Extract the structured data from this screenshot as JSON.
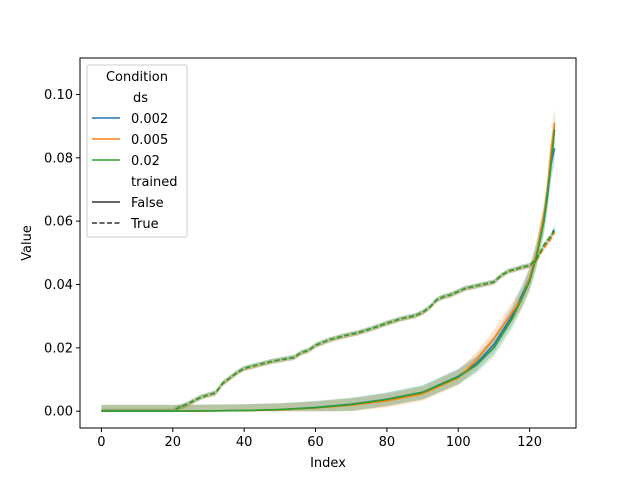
{
  "chart_data": {
    "type": "line",
    "xlabel": "Index",
    "ylabel": "Value",
    "xlim": [
      -6,
      133
    ],
    "ylim": [
      -0.0053,
      0.1115
    ],
    "xticks": [
      0,
      20,
      40,
      60,
      80,
      100,
      120
    ],
    "yticks": [
      0.0,
      0.02,
      0.04,
      0.06,
      0.08,
      0.1
    ],
    "ytick_labels": [
      "0.00",
      "0.02",
      "0.04",
      "0.06",
      "0.08",
      "0.10"
    ],
    "grid": false,
    "legend": {
      "placement": "top-left",
      "title": "Condition",
      "hue_title": "ds",
      "hue_entries": [
        {
          "label": "0.002",
          "color": "#1f77b4"
        },
        {
          "label": "0.005",
          "color": "#ff7f0e"
        },
        {
          "label": "0.02",
          "color": "#2ca02c"
        }
      ],
      "style_title": "trained",
      "style_entries": [
        {
          "label": "False",
          "dash": "solid"
        },
        {
          "label": "True",
          "dash": "dashed"
        }
      ]
    },
    "series": [
      {
        "ds": "0.002",
        "trained": "False",
        "color": "#1f77b4",
        "dash": "solid",
        "x": [
          0,
          20,
          40,
          50,
          60,
          70,
          80,
          90,
          100,
          105,
          110,
          115,
          118,
          120,
          122,
          124,
          125,
          126,
          127
        ],
        "y": [
          0.0,
          0.0,
          0.0002,
          0.0005,
          0.0012,
          0.0022,
          0.0038,
          0.006,
          0.011,
          0.015,
          0.021,
          0.03,
          0.037,
          0.042,
          0.05,
          0.06,
          0.068,
          0.078,
          0.083
        ],
        "band": 0.002
      },
      {
        "ds": "0.005",
        "trained": "False",
        "color": "#ff7f0e",
        "dash": "solid",
        "x": [
          0,
          20,
          40,
          50,
          60,
          70,
          80,
          90,
          100,
          105,
          110,
          115,
          118,
          120,
          122,
          124,
          125,
          126,
          127
        ],
        "y": [
          0.0,
          0.0,
          0.0002,
          0.0004,
          0.001,
          0.0019,
          0.0033,
          0.0055,
          0.0105,
          0.016,
          0.023,
          0.031,
          0.036,
          0.042,
          0.05,
          0.062,
          0.07,
          0.082,
          0.091
        ],
        "band": 0.002
      },
      {
        "ds": "0.02",
        "trained": "False",
        "color": "#2ca02c",
        "dash": "solid",
        "x": [
          0,
          20,
          40,
          50,
          60,
          70,
          80,
          90,
          100,
          105,
          110,
          115,
          118,
          120,
          122,
          124,
          125,
          126,
          127
        ],
        "y": [
          0.0,
          0.0,
          0.0002,
          0.0005,
          0.0011,
          0.0021,
          0.0037,
          0.0059,
          0.0108,
          0.0145,
          0.02,
          0.029,
          0.036,
          0.041,
          0.049,
          0.06,
          0.069,
          0.078,
          0.089
        ],
        "band": 0.002
      },
      {
        "ds": "0.002",
        "trained": "True",
        "color": "#1f77b4",
        "dash": "dashed",
        "x": [
          0,
          20,
          22,
          24,
          28,
          32,
          34,
          36,
          38,
          40,
          44,
          48,
          50,
          54,
          56,
          58,
          60,
          64,
          68,
          72,
          76,
          80,
          84,
          88,
          90,
          92,
          94,
          96,
          98,
          100,
          102,
          106,
          110,
          112,
          114,
          116,
          118,
          120,
          122,
          124,
          126,
          127
        ],
        "y": [
          0.0,
          0.0,
          0.0013,
          0.0022,
          0.0045,
          0.0058,
          0.0088,
          0.0105,
          0.0122,
          0.0135,
          0.0147,
          0.0158,
          0.0162,
          0.017,
          0.0185,
          0.0192,
          0.0208,
          0.0226,
          0.0238,
          0.0248,
          0.0262,
          0.0278,
          0.0292,
          0.0302,
          0.0312,
          0.0328,
          0.0352,
          0.0362,
          0.0368,
          0.0378,
          0.0388,
          0.0398,
          0.0408,
          0.0428,
          0.0442,
          0.0448,
          0.0455,
          0.046,
          0.048,
          0.052,
          0.055,
          0.058
        ],
        "band": 0.0008
      },
      {
        "ds": "0.005",
        "trained": "True",
        "color": "#ff7f0e",
        "dash": "dashed",
        "x": [
          0,
          20,
          22,
          24,
          28,
          32,
          34,
          36,
          38,
          40,
          44,
          48,
          50,
          54,
          56,
          58,
          60,
          64,
          68,
          72,
          76,
          80,
          84,
          88,
          90,
          92,
          94,
          96,
          98,
          100,
          102,
          106,
          110,
          112,
          114,
          116,
          118,
          120,
          122,
          124,
          126,
          127
        ],
        "y": [
          0.0,
          0.0,
          0.0012,
          0.0021,
          0.0044,
          0.0057,
          0.0087,
          0.0104,
          0.0121,
          0.0134,
          0.0146,
          0.0157,
          0.0161,
          0.0169,
          0.0184,
          0.0191,
          0.0207,
          0.0225,
          0.0237,
          0.0247,
          0.0261,
          0.0277,
          0.0291,
          0.0301,
          0.0311,
          0.0327,
          0.0351,
          0.0361,
          0.0367,
          0.0377,
          0.0387,
          0.0397,
          0.0407,
          0.0427,
          0.0441,
          0.0447,
          0.0454,
          0.0459,
          0.0478,
          0.0515,
          0.0545,
          0.0565
        ],
        "band": 0.0008
      },
      {
        "ds": "0.02",
        "trained": "True",
        "color": "#2ca02c",
        "dash": "dashed",
        "x": [
          0,
          20,
          22,
          24,
          28,
          32,
          34,
          36,
          38,
          40,
          44,
          48,
          50,
          54,
          56,
          58,
          60,
          64,
          68,
          72,
          76,
          80,
          84,
          88,
          90,
          92,
          94,
          96,
          98,
          100,
          102,
          106,
          110,
          112,
          114,
          116,
          118,
          120,
          122,
          124,
          126,
          127
        ],
        "y": [
          0.0,
          0.0,
          0.0013,
          0.0022,
          0.0045,
          0.0058,
          0.0088,
          0.0105,
          0.0122,
          0.0135,
          0.0147,
          0.0158,
          0.0162,
          0.017,
          0.0185,
          0.0192,
          0.0208,
          0.0226,
          0.0238,
          0.0248,
          0.0262,
          0.0278,
          0.0292,
          0.0302,
          0.0312,
          0.0328,
          0.0352,
          0.0362,
          0.0368,
          0.0378,
          0.0388,
          0.0398,
          0.0408,
          0.0428,
          0.0442,
          0.0448,
          0.0455,
          0.046,
          0.048,
          0.0525,
          0.0555,
          0.057
        ],
        "band": 0.0008
      }
    ]
  }
}
